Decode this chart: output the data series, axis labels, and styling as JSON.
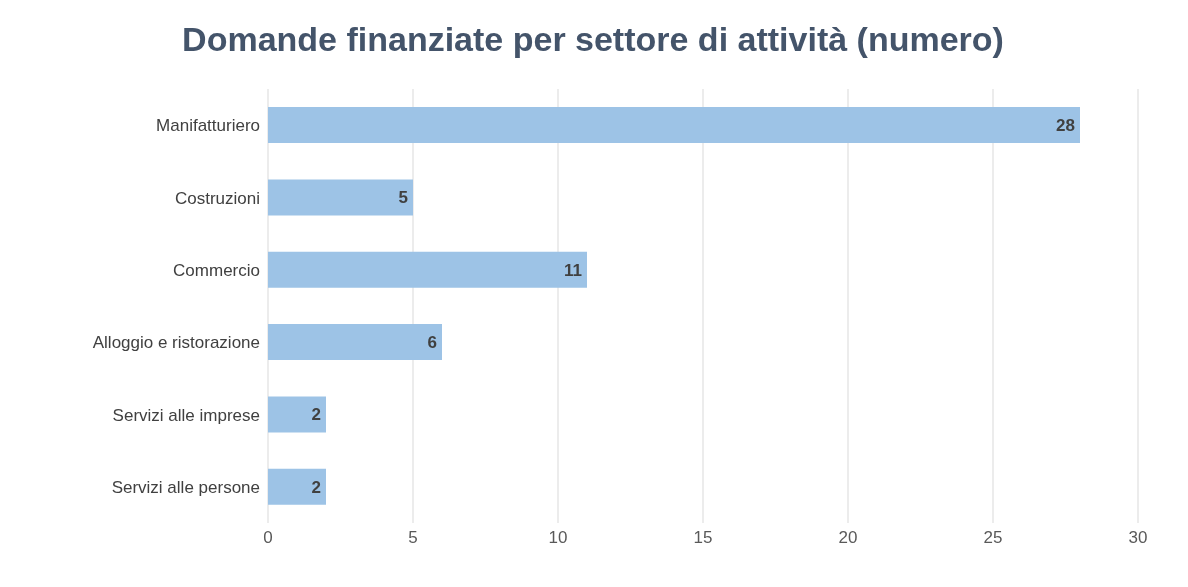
{
  "chart_data": {
    "type": "bar",
    "orientation": "horizontal",
    "title": "Domande finanziate per settore di attività (numero)",
    "categories": [
      "Manifatturiero",
      "Costruzioni",
      "Commercio",
      "Alloggio e ristorazione",
      "Servizi alle imprese",
      "Servizi alle persone"
    ],
    "values": [
      28,
      5,
      11,
      6,
      2,
      2
    ],
    "color": "#9dc3e6",
    "xlim": [
      0,
      30
    ],
    "xticks": [
      0,
      5,
      10,
      15,
      20,
      25,
      30
    ],
    "grid": "x",
    "data_labels": true
  }
}
